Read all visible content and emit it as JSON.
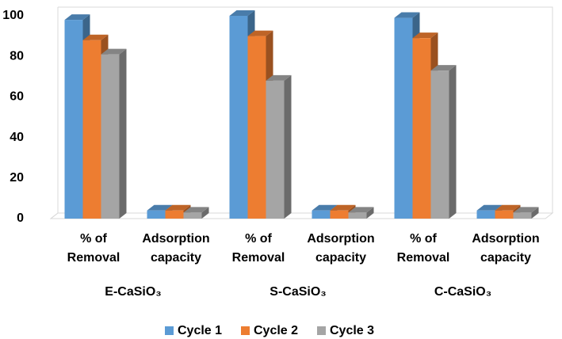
{
  "chart_data": {
    "type": "bar3d",
    "categories": [
      "% of Removal",
      "Adsorption capacity",
      "% of Removal",
      "Adsorption capacity",
      "% of Removal",
      "Adsorption capacity"
    ],
    "groups": [
      "E-CaSiO₃",
      "S-CaSiO₃",
      "C-CaSiO₃"
    ],
    "series": [
      {
        "name": "Cycle 1",
        "color": "#5b9bd5",
        "values": [
          98,
          4,
          100,
          4,
          99,
          4
        ]
      },
      {
        "name": "Cycle 2",
        "color": "#ed7d31",
        "values": [
          88,
          4,
          90,
          4,
          89,
          4
        ]
      },
      {
        "name": "Cycle 3",
        "color": "#a5a5a5",
        "values": [
          81,
          3,
          68,
          3,
          73,
          3
        ]
      }
    ],
    "ylim": [
      0,
      100
    ],
    "yticks": [
      0,
      20,
      40,
      60,
      80,
      100
    ],
    "legend": "bottom"
  }
}
